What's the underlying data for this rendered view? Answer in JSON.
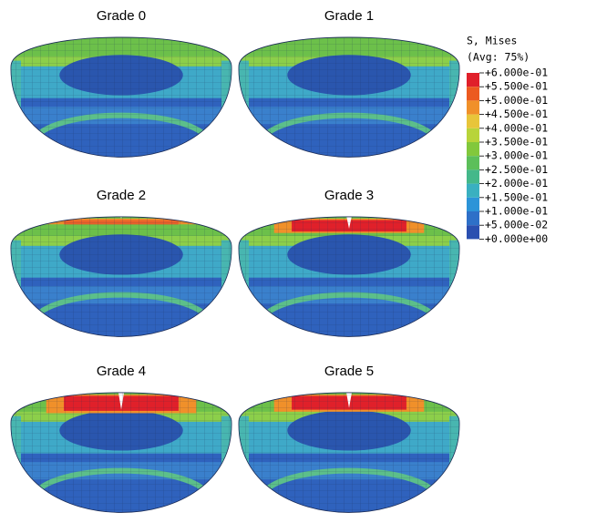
{
  "panels": [
    {
      "title": "Grade 0"
    },
    {
      "title": "Grade 1"
    },
    {
      "title": "Grade 2"
    },
    {
      "title": "Grade 3"
    },
    {
      "title": "Grade 4"
    },
    {
      "title": "Grade 5"
    }
  ],
  "legend": {
    "title": "S, Mises",
    "subtitle": "(Avg: 75%)",
    "labels": [
      "+6.000e-01",
      "+5.500e-01",
      "+5.000e-01",
      "+4.500e-01",
      "+4.000e-01",
      "+3.500e-01",
      "+3.000e-01",
      "+2.500e-01",
      "+2.000e-01",
      "+1.500e-01",
      "+1.000e-01",
      "+5.000e-02",
      "+0.000e+00"
    ],
    "colors": [
      "#e0202a",
      "#ec5a20",
      "#f0902a",
      "#e8c53a",
      "#b8d43a",
      "#82c83c",
      "#5cbf5a",
      "#44b88a",
      "#3ab0c0",
      "#2c94d8",
      "#2e70c8",
      "#2a4fb0"
    ]
  }
}
